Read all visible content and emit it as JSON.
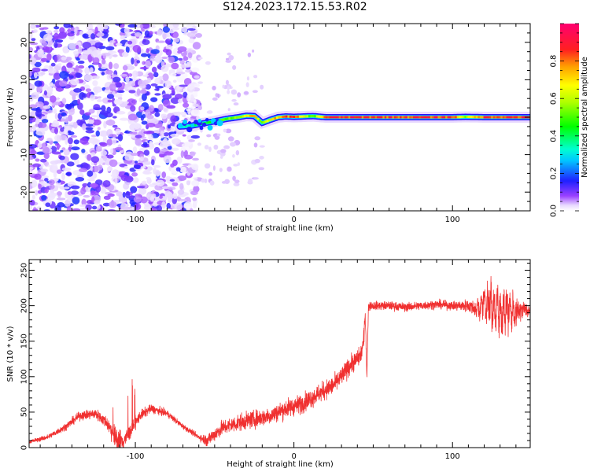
{
  "title": "S124.2023.172.15.53.R02",
  "chart_data": [
    {
      "type": "heatmap",
      "title": "",
      "xlabel": "Height of straight line (km)",
      "ylabel": "Frequency (Hz)",
      "xlim": [
        -167,
        149
      ],
      "ylim": [
        -25,
        25
      ],
      "xticks": [
        -100,
        0,
        100
      ],
      "yticks": [
        -20,
        -10,
        0,
        10,
        20
      ],
      "colorbar": {
        "label": "Normalized spectral amplitude",
        "range": [
          0,
          1
        ],
        "ticks": [
          0.0,
          0.2,
          0.4,
          0.6,
          0.8
        ],
        "colormap": "rainbow (white-purple-blue-cyan-green-yellow-red-magenta)"
      },
      "noise_region_x": [
        -167,
        -60
      ],
      "ridge": {
        "x": [
          -72,
          -65,
          -58,
          -50,
          -42,
          -35,
          -30,
          -25,
          -20,
          -15,
          -10,
          -5,
          0,
          12,
          20,
          40,
          60,
          80,
          100,
          108,
          120,
          149
        ],
        "freq": [
          -2.5,
          -2.3,
          -1.7,
          -1.1,
          -0.4,
          0.0,
          0.4,
          0.3,
          -1.5,
          -0.7,
          0.0,
          0.2,
          0.1,
          0.3,
          0.0,
          0.0,
          0.0,
          0.0,
          0.0,
          0.1,
          0.0,
          0.0
        ],
        "amplitude": [
          0.3,
          0.4,
          0.45,
          0.5,
          0.55,
          0.6,
          0.7,
          0.75,
          0.55,
          0.7,
          0.8,
          0.85,
          0.85,
          0.5,
          0.9,
          0.9,
          0.9,
          0.9,
          0.9,
          0.6,
          0.9,
          0.9
        ]
      }
    },
    {
      "type": "line",
      "title": "",
      "xlabel": "Height of straight line (km)",
      "ylabel": "SNR (10 * v/v)",
      "xlim": [
        -167,
        149
      ],
      "ylim": [
        0,
        265
      ],
      "xticks": [
        -100,
        0,
        100
      ],
      "yticks": [
        0,
        50,
        100,
        150,
        200,
        250
      ],
      "color": "#f03030",
      "series": [
        {
          "name": "",
          "x": [
            -167,
            -155,
            -145,
            -135,
            -125,
            -118,
            -112,
            -108,
            -104,
            -97,
            -90,
            -80,
            -70,
            -60,
            -55,
            -45,
            -35,
            -25,
            -15,
            -5,
            5,
            15,
            25,
            30,
            35,
            40,
            42,
            44,
            45,
            46,
            47,
            48,
            50,
            60,
            70,
            80,
            90,
            100,
            110,
            115,
            120,
            125,
            130,
            135,
            140,
            145,
            149
          ],
          "y": [
            8,
            15,
            28,
            45,
            48,
            35,
            12,
            8,
            20,
            45,
            55,
            48,
            30,
            15,
            10,
            28,
            35,
            40,
            45,
            55,
            62,
            75,
            88,
            100,
            115,
            125,
            130,
            150,
            190,
            100,
            198,
            200,
            200,
            200,
            198,
            200,
            202,
            200,
            200,
            195,
            205,
            200,
            190,
            195,
            190,
            195,
            192
          ],
          "noise_amplitude": [
            4,
            6,
            8,
            10,
            12,
            15,
            30,
            25,
            18,
            12,
            10,
            8,
            6,
            6,
            15,
            18,
            20,
            20,
            20,
            22,
            22,
            22,
            22,
            22,
            22,
            22,
            20,
            25,
            20,
            10,
            10,
            10,
            10,
            10,
            10,
            10,
            10,
            10,
            15,
            20,
            35,
            45,
            55,
            35,
            30,
            20,
            15
          ]
        }
      ]
    }
  ]
}
